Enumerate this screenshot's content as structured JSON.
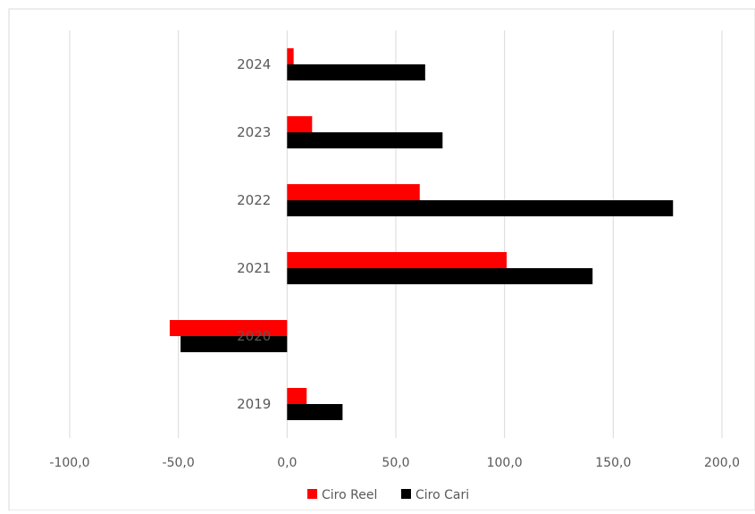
{
  "chart_data": {
    "type": "bar",
    "orientation": "horizontal",
    "categories": [
      "2019",
      "2020",
      "2021",
      "2022",
      "2023",
      "2024"
    ],
    "series": [
      {
        "name": "Ciro Reel",
        "color": "#ff0000",
        "values": [
          9.0,
          -54.0,
          101.0,
          61.0,
          11.5,
          3.0
        ]
      },
      {
        "name": "Ciro Cari",
        "color": "#000000",
        "values": [
          25.5,
          -49.0,
          140.5,
          177.5,
          71.5,
          63.5
        ]
      }
    ],
    "xlim": [
      -100,
      200
    ],
    "xticks": [
      "-100,0",
      "-50,0",
      "0,0",
      "50,0",
      "100,0",
      "150,0",
      "200,0"
    ],
    "grid": true,
    "legend_position": "bottom"
  }
}
